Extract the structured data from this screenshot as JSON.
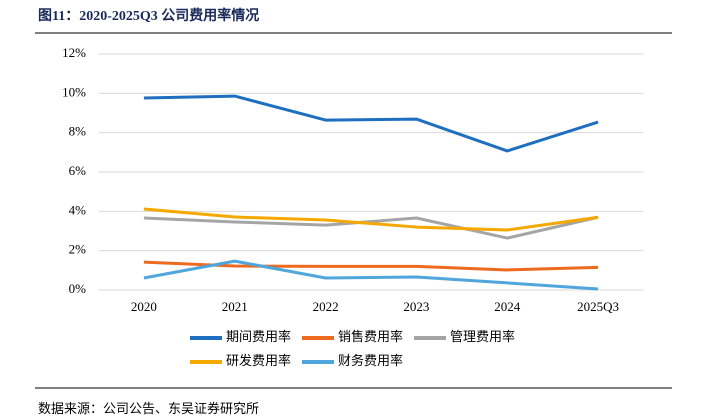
{
  "chart_data": {
    "type": "line",
    "title": "图11：2020-2025Q3 公司费用率情况",
    "source": "数据来源：公司公告、东吴证券研究所",
    "categories": [
      "2020",
      "2021",
      "2022",
      "2023",
      "2024",
      "2025Q3"
    ],
    "ylim": [
      0,
      12
    ],
    "yticks": [
      {
        "value": 0,
        "label": "0%"
      },
      {
        "value": 2,
        "label": "2%"
      },
      {
        "value": 4,
        "label": "4%"
      },
      {
        "value": 6,
        "label": "6%"
      },
      {
        "value": 8,
        "label": "8%"
      },
      {
        "value": 10,
        "label": "10%"
      },
      {
        "value": 12,
        "label": "12%"
      }
    ],
    "grid": true,
    "series": [
      {
        "name": "期间费用率",
        "color": "#1f6fc0",
        "values": [
          9.76,
          9.86,
          8.64,
          8.69,
          7.07,
          8.54
        ]
      },
      {
        "name": "销售费用率",
        "color": "#ee6a1f",
        "values": [
          1.42,
          1.22,
          1.2,
          1.2,
          1.02,
          1.15
        ]
      },
      {
        "name": "管理费用率",
        "color": "#a5a5a5",
        "values": [
          3.66,
          3.46,
          3.3,
          3.66,
          2.64,
          3.7
        ]
      },
      {
        "name": "研发费用率",
        "color": "#f5a800",
        "values": [
          4.12,
          3.71,
          3.56,
          3.2,
          3.05,
          3.7
        ]
      },
      {
        "name": "财务费用率",
        "color": "#4ea6dc",
        "values": [
          0.61,
          1.47,
          0.61,
          0.66,
          0.36,
          0.05
        ]
      }
    ]
  }
}
